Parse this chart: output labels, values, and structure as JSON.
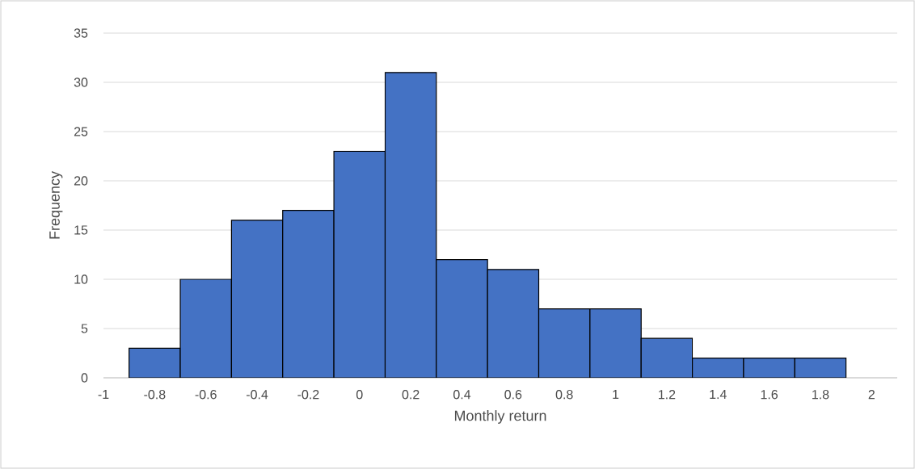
{
  "chart_data": {
    "type": "histogram",
    "xlabel": "Monthly return",
    "ylabel": "Frequency",
    "bins": [
      -0.9,
      -0.7,
      -0.5,
      -0.3,
      -0.1,
      0.1,
      0.3,
      0.5,
      0.7,
      0.9,
      1.1,
      1.3,
      1.5,
      1.7,
      1.9
    ],
    "values": [
      3,
      10,
      16,
      17,
      23,
      31,
      12,
      11,
      7,
      7,
      4,
      2,
      2,
      2
    ],
    "color": "#4472c4",
    "xlim": [
      -1,
      2.1
    ],
    "xticks": [
      -1,
      -0.8,
      -0.6,
      -0.4,
      -0.2,
      0,
      0.2,
      0.4,
      0.6,
      0.8,
      1,
      1.2,
      1.4,
      1.6,
      1.8,
      2
    ],
    "ylim": [
      0,
      35
    ],
    "yticks": [
      0,
      5,
      10,
      15,
      20,
      25,
      30,
      35
    ],
    "grid": "y"
  }
}
